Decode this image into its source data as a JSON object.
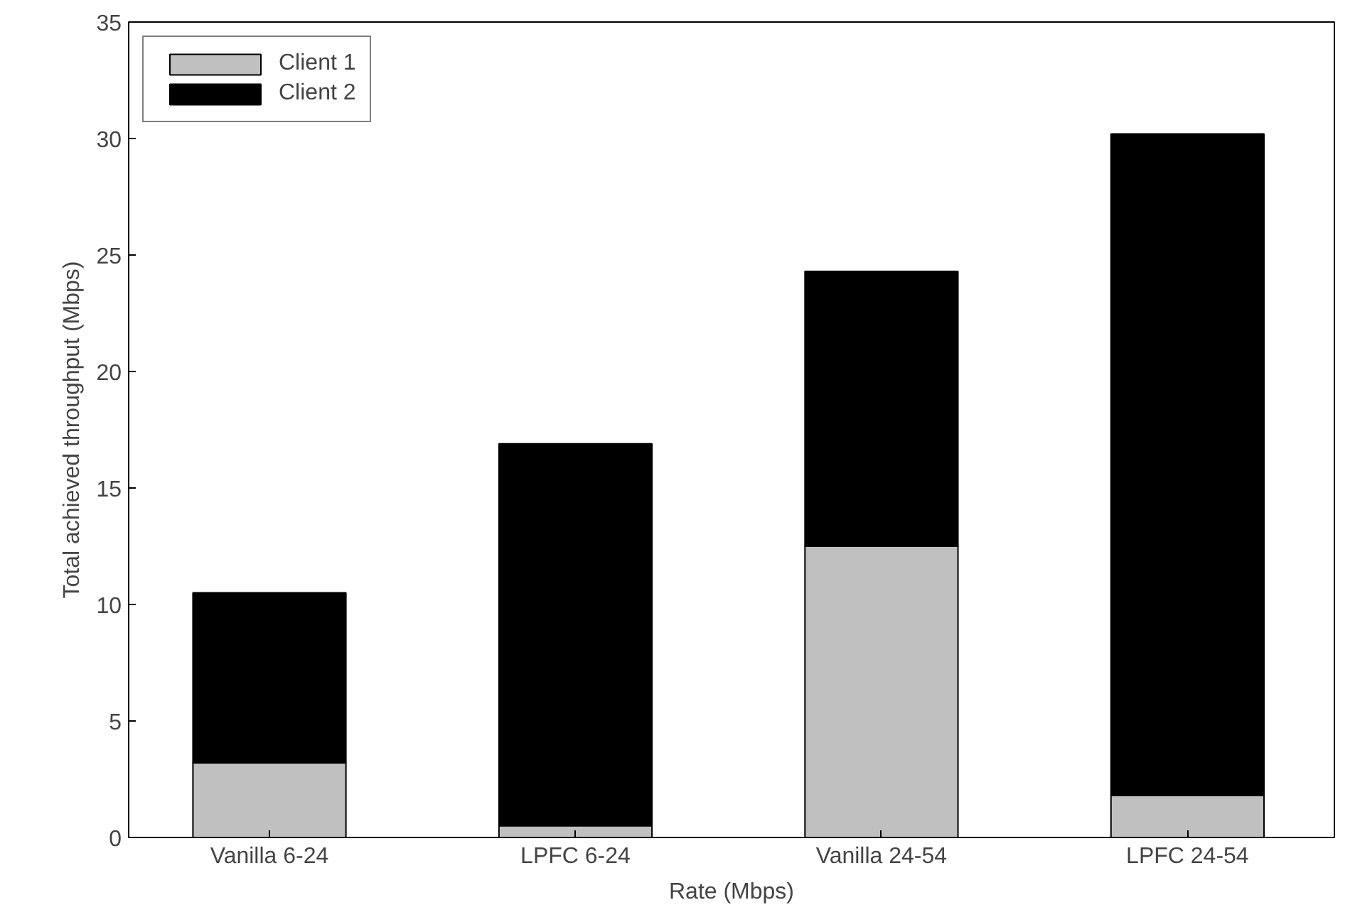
{
  "chart_data": {
    "type": "bar",
    "stacked": true,
    "xlabel": "Rate (Mbps)",
    "ylabel": "Total achieved throughput (Mbps)",
    "categories": [
      "Vanilla 6-24",
      "LPFC 6-24",
      "Vanilla 24-54",
      "LPFC 24-54"
    ],
    "series": [
      {
        "name": "Client 1",
        "color": "#c0c0c0",
        "values": [
          3.2,
          0.5,
          12.5,
          1.8
        ]
      },
      {
        "name": "Client 2",
        "color": "#000000",
        "values": [
          7.3,
          16.4,
          11.8,
          28.4
        ]
      }
    ],
    "ylim": [
      0,
      35
    ],
    "yticks": [
      0,
      5,
      10,
      15,
      20,
      25,
      30,
      35
    ],
    "grid": false,
    "legend": "top left"
  }
}
